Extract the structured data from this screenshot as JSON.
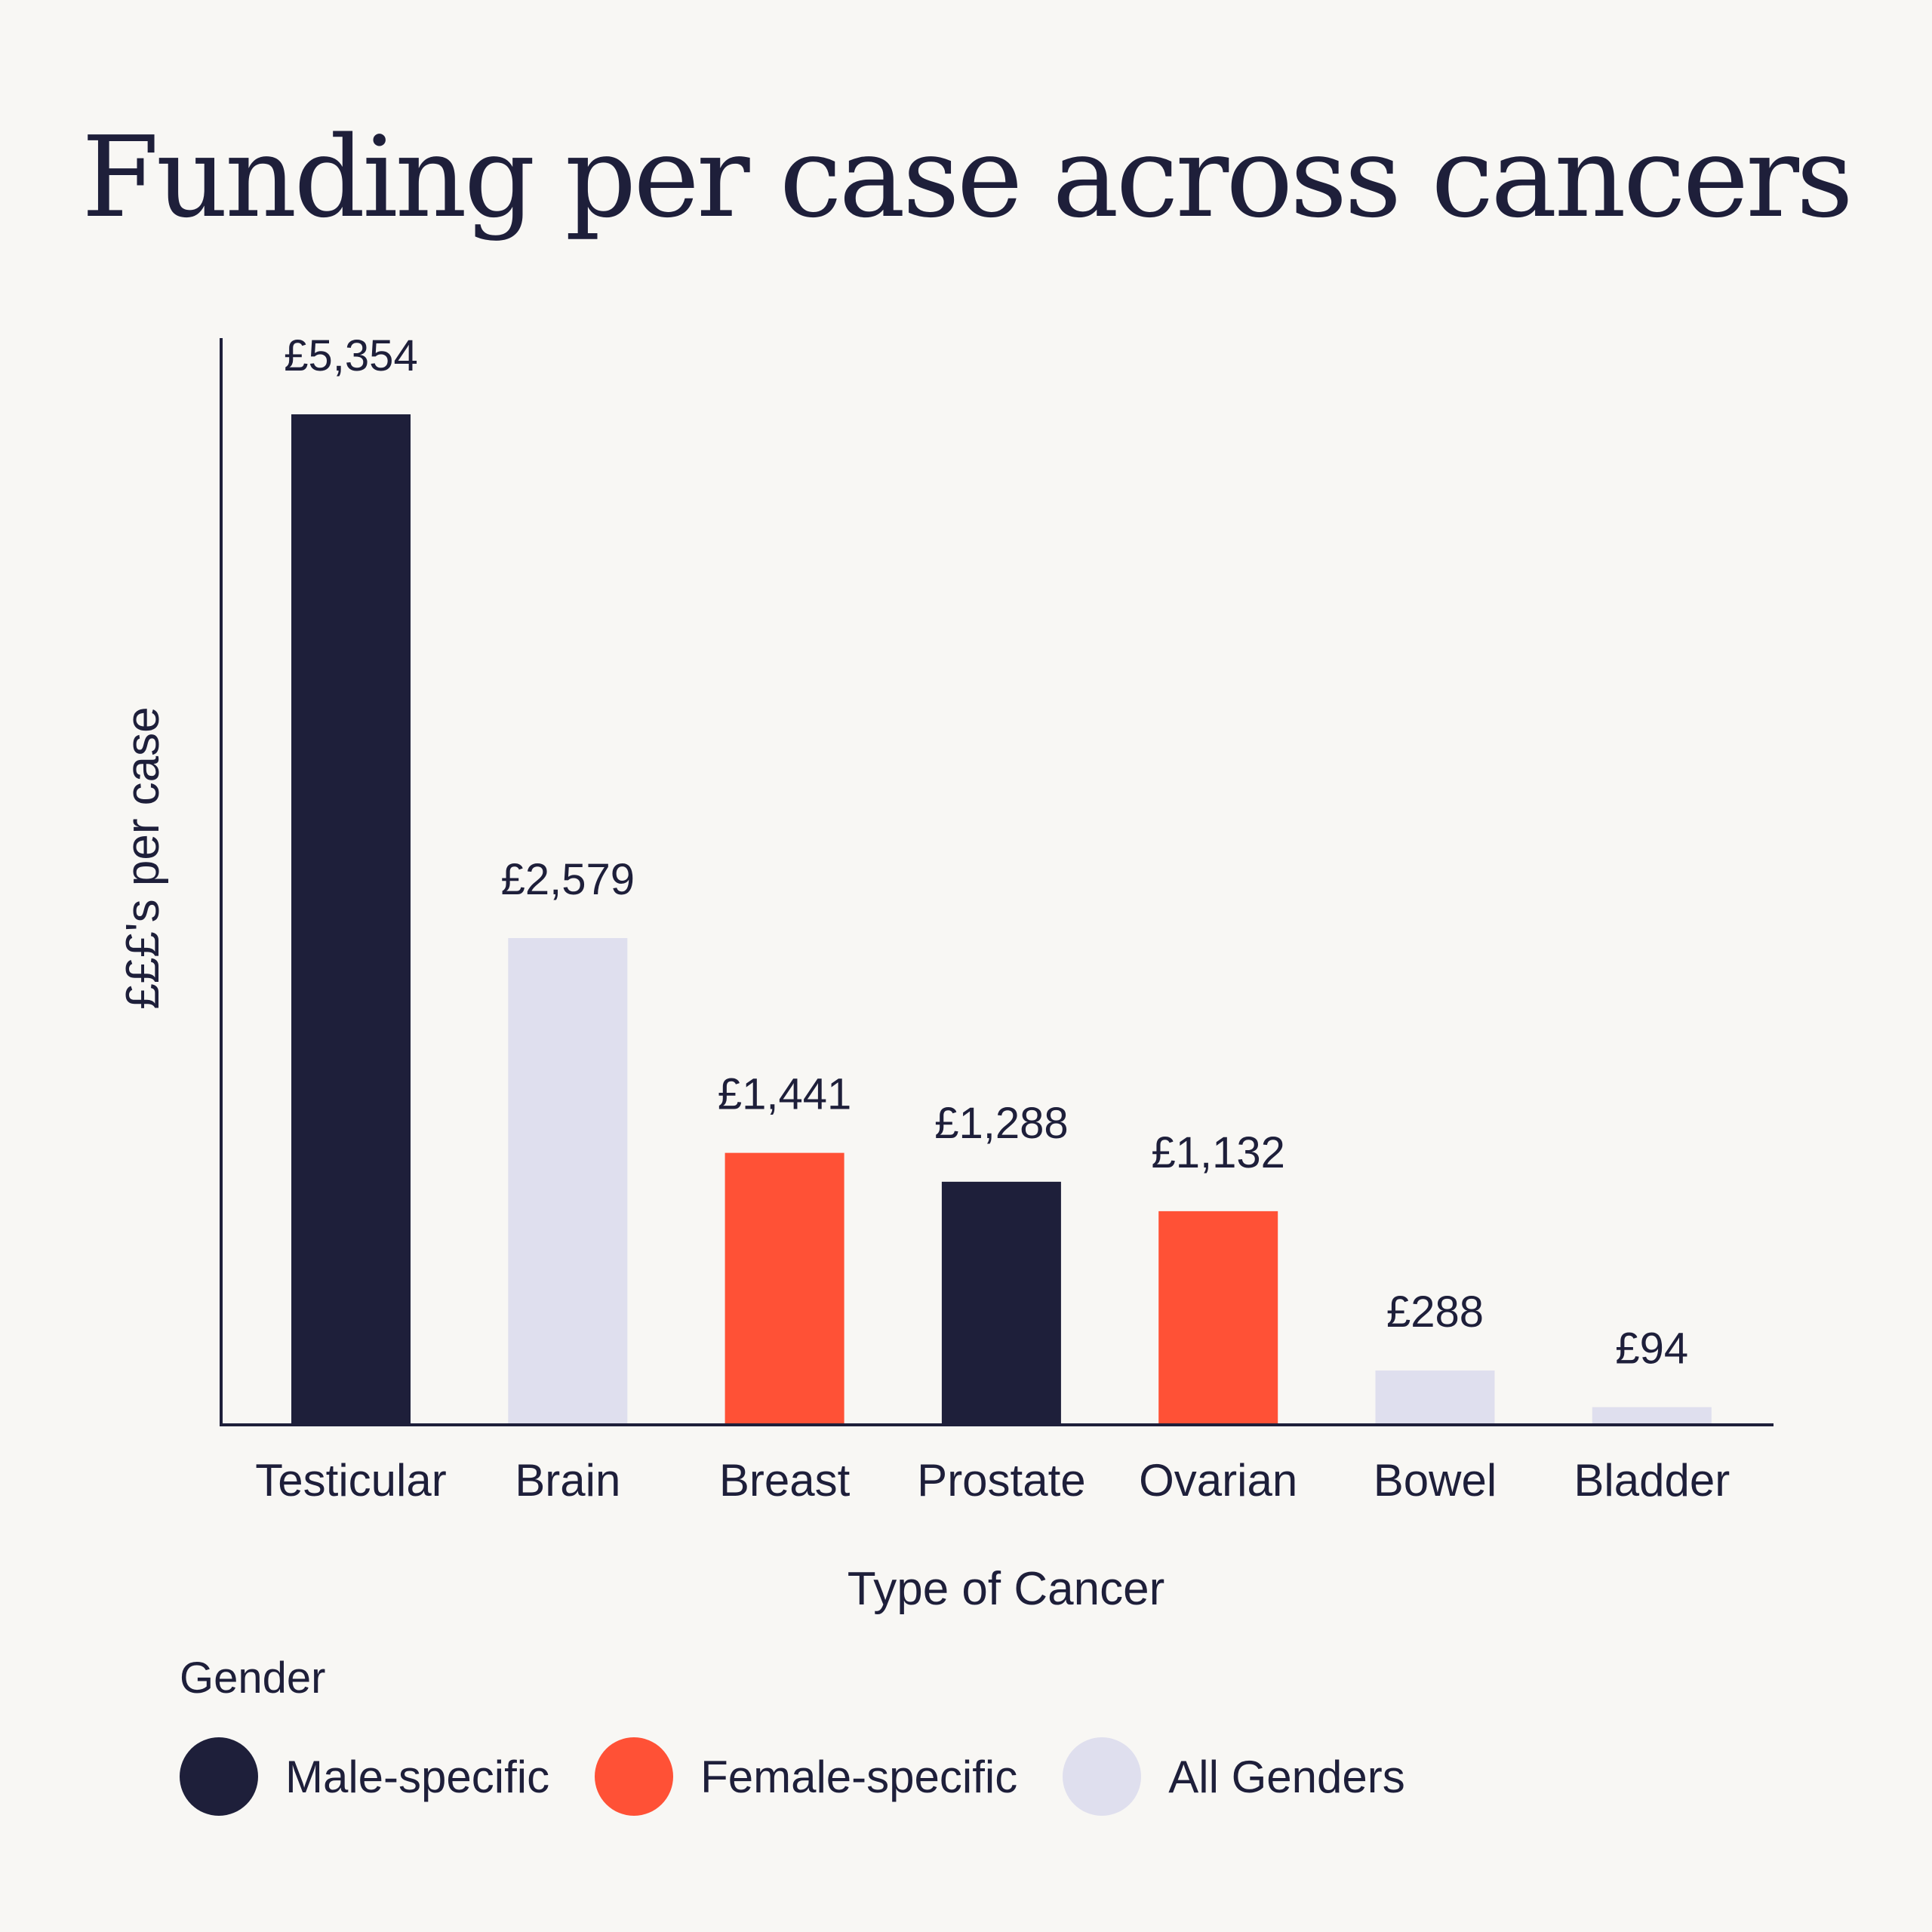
{
  "title": "Funding per case across cancers",
  "colors": {
    "male": "#1e1f3a",
    "female": "#ff5136",
    "all": "#dfdfee",
    "axis": "#1e1f3a",
    "text": "#1e1f3a",
    "background": "#f8f7f4"
  },
  "chart_data": {
    "type": "bar",
    "title": "Funding per case across cancers",
    "xlabel": "Type of Cancer",
    "ylabel": "£££'s per case",
    "categories": [
      "Testicular",
      "Brain",
      "Breast",
      "Prostate",
      "Ovarian",
      "Bowel",
      "Bladder"
    ],
    "values": [
      5354,
      2579,
      1441,
      1288,
      1132,
      288,
      94
    ],
    "value_labels": [
      "£5,354",
      "£2,579",
      "£1,441",
      "£1,288",
      "£1,132",
      "£288",
      "£94"
    ],
    "groups": [
      "male",
      "all",
      "female",
      "male",
      "female",
      "all",
      "all"
    ],
    "ylim": [
      0,
      5354
    ],
    "grid": false,
    "legend_position": "bottom-left"
  },
  "legend": {
    "title": "Gender",
    "items": [
      {
        "key": "male",
        "label": "Male-specific"
      },
      {
        "key": "female",
        "label": "Female-specific"
      },
      {
        "key": "all",
        "label": "All Genders"
      }
    ]
  }
}
